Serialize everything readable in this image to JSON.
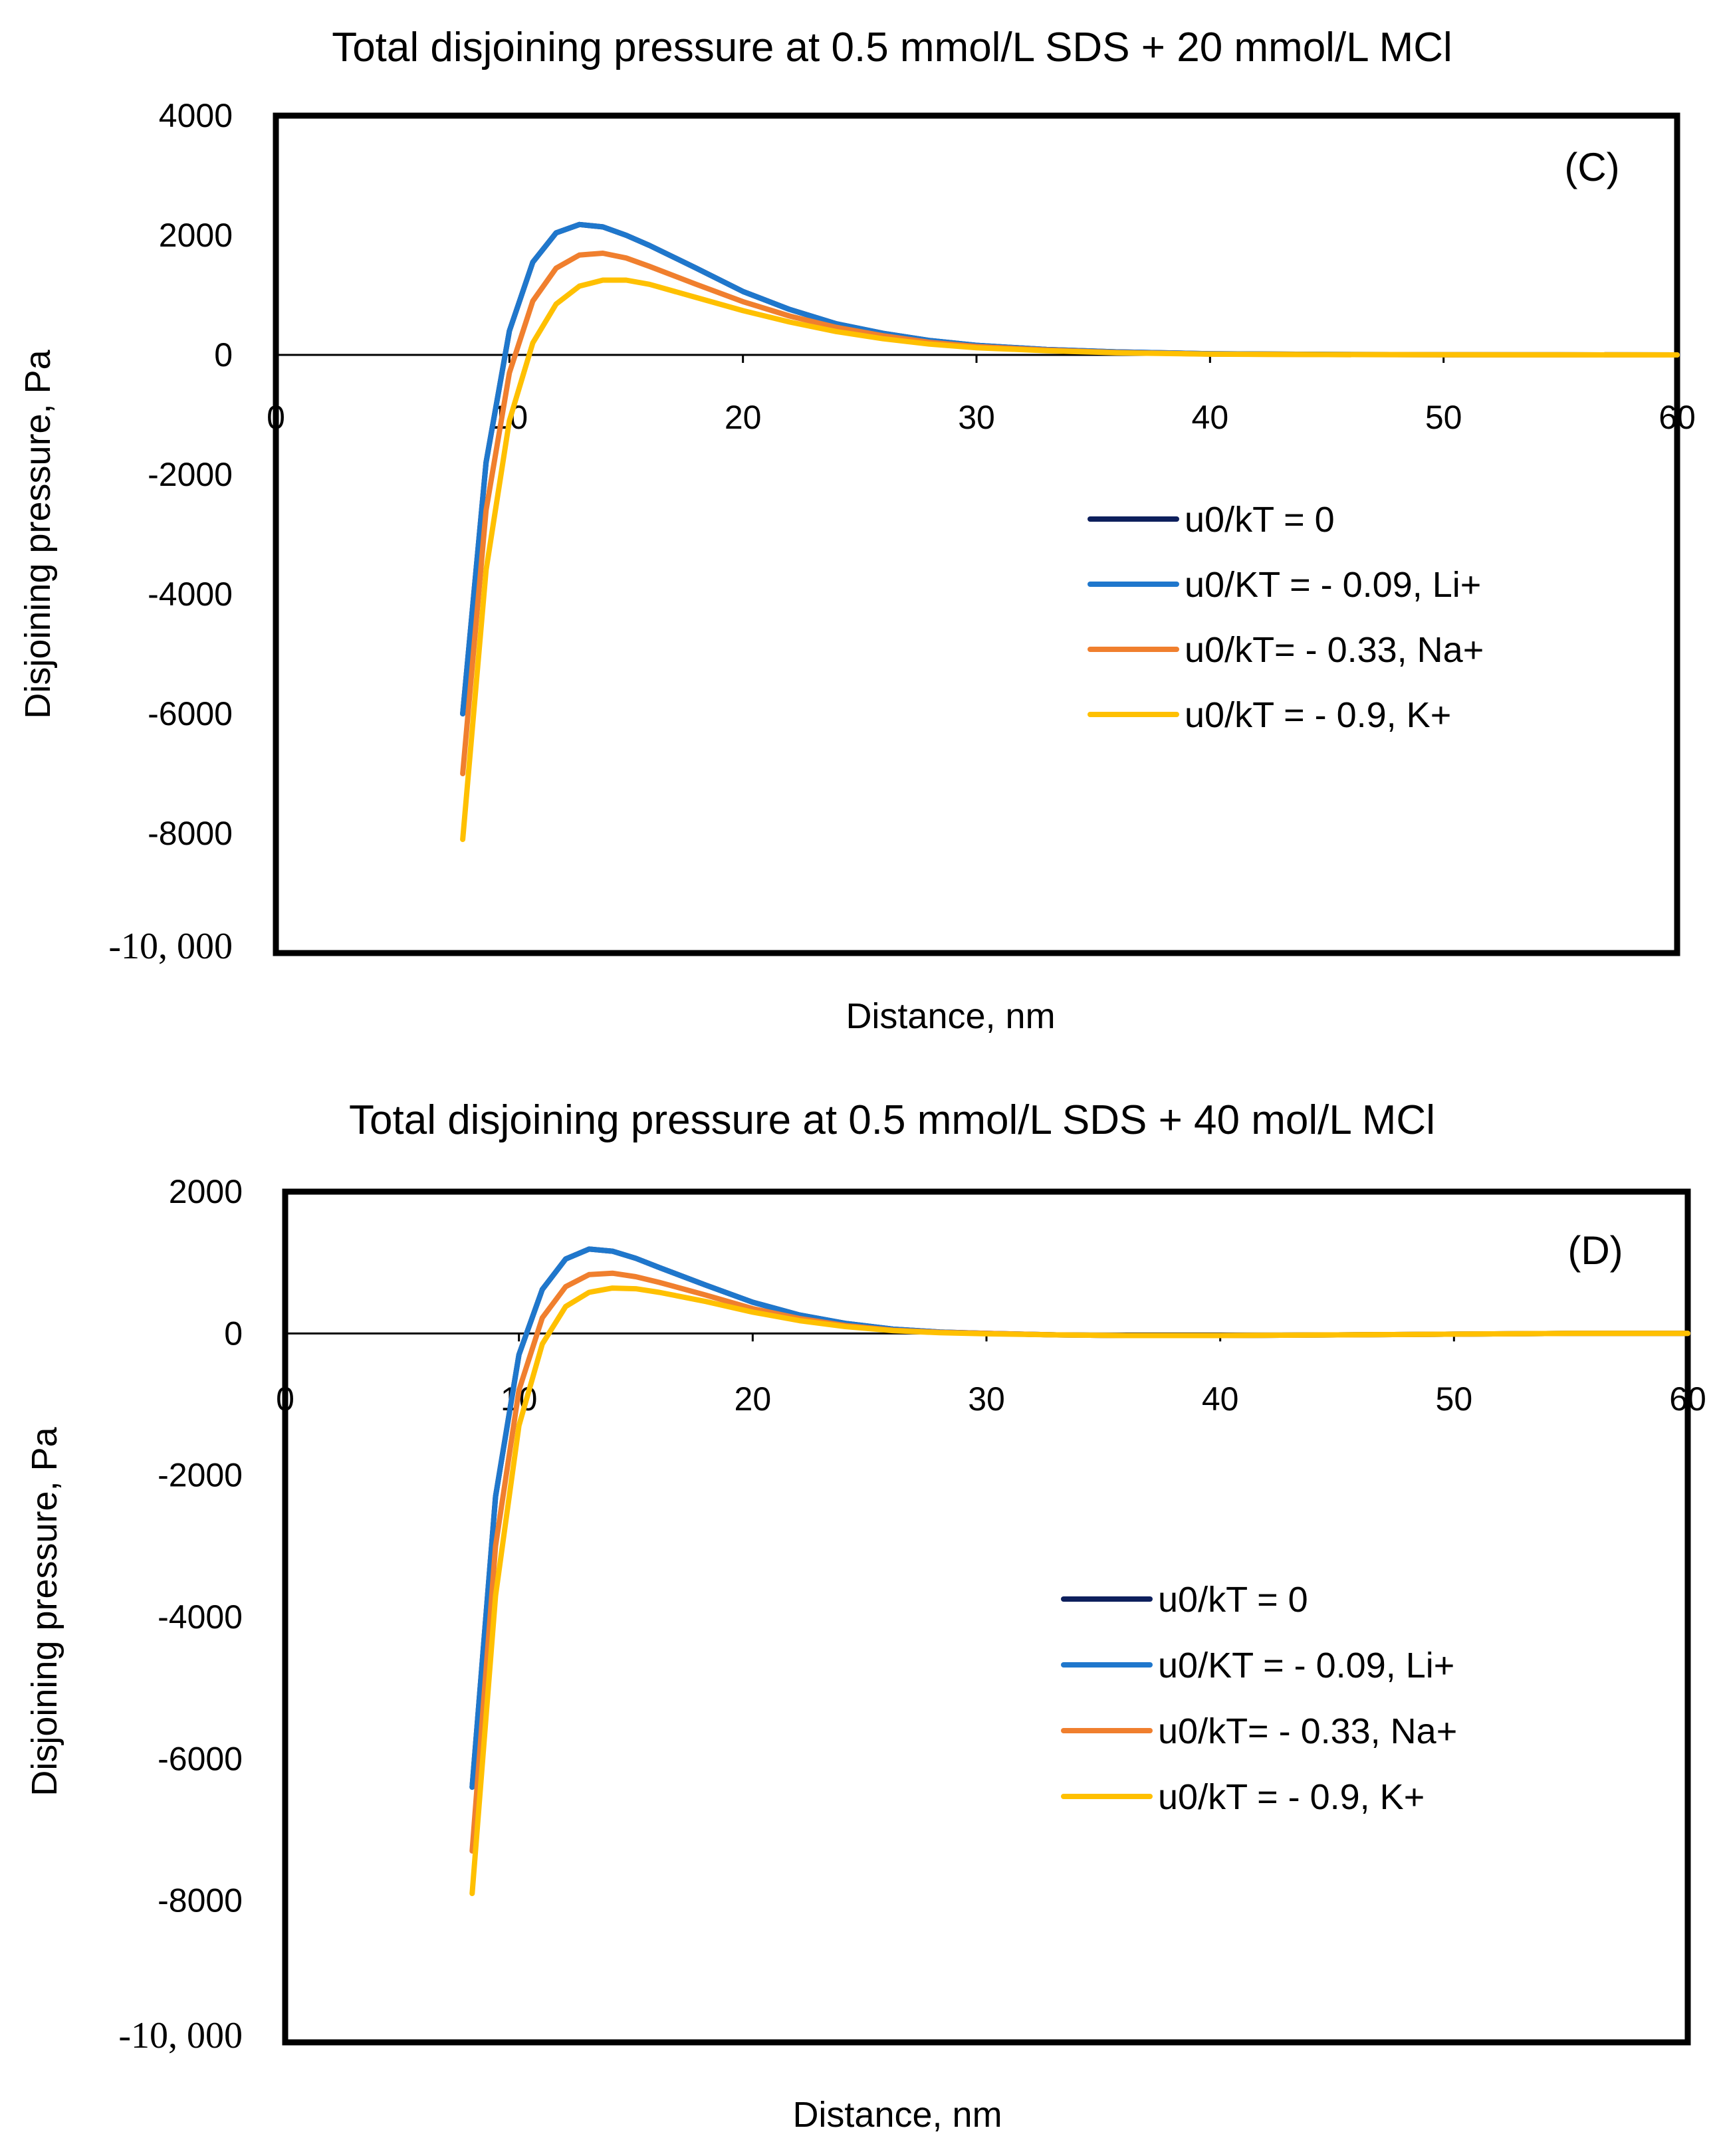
{
  "chart_data": [
    {
      "type": "line",
      "panel_label": "(C)",
      "title": "Total disjoining pressure at 0.5 mmol/L SDS + 20 mmol/L MCl",
      "xlabel": "Distance, nm",
      "ylabel": "Disjoining pressure, Pa",
      "xlim": [
        0,
        60
      ],
      "ylim": [
        -10000,
        4000
      ],
      "x_ticks": [
        0,
        10,
        20,
        30,
        40,
        50,
        60
      ],
      "x_tick_labels": [
        "0",
        "10",
        "20",
        "30",
        "40",
        "50",
        "60"
      ],
      "y_ticks": [
        4000,
        2000,
        0,
        -2000,
        -4000,
        -6000,
        -8000,
        -10000
      ],
      "y_tick_labels": [
        "4000",
        "2000",
        "0",
        "-2000",
        "-4000",
        "-6000",
        "-8000",
        "-10, 000"
      ],
      "legend_position": "center-right",
      "x": [
        8,
        9,
        10,
        11,
        12,
        13,
        14,
        15,
        16,
        18,
        20,
        22,
        24,
        26,
        28,
        30,
        33,
        36,
        40,
        45,
        50,
        55,
        60
      ],
      "series": [
        {
          "name": "u0/kT = 0",
          "color": "#0d1f5c",
          "values": [
            -6000,
            -1800,
            400,
            1550,
            2040,
            2180,
            2140,
            2000,
            1830,
            1450,
            1060,
            760,
            520,
            360,
            240,
            160,
            90,
            50,
            20,
            8,
            3,
            1,
            0
          ]
        },
        {
          "name": "u0/KT = - 0.09, Li+",
          "color": "#1f77cc",
          "values": [
            -6000,
            -1800,
            400,
            1550,
            2040,
            2180,
            2140,
            2000,
            1830,
            1450,
            1060,
            760,
            520,
            360,
            240,
            160,
            90,
            50,
            20,
            8,
            3,
            1,
            0
          ]
        },
        {
          "name": "u0/kT= - 0.33, Na+",
          "color": "#f07f2e",
          "values": [
            -7000,
            -2600,
            -300,
            900,
            1450,
            1670,
            1700,
            1620,
            1480,
            1180,
            890,
            650,
            460,
            320,
            210,
            140,
            80,
            40,
            15,
            6,
            2,
            1,
            0
          ]
        },
        {
          "name": "u0/kT = - 0.9, K+",
          "color": "#ffc000",
          "values": [
            -8100,
            -3600,
            -1100,
            200,
            850,
            1150,
            1250,
            1250,
            1180,
            960,
            740,
            550,
            390,
            270,
            180,
            120,
            70,
            35,
            12,
            5,
            2,
            1,
            0
          ]
        }
      ]
    },
    {
      "type": "line",
      "panel_label": "(D)",
      "title": "Total disjoining pressure at 0.5 mmol/L SDS + 40 mol/L MCl",
      "xlabel": "Distance, nm",
      "ylabel": "Disjoining pressure, Pa",
      "xlim": [
        0,
        60
      ],
      "ylim": [
        -10000,
        2000
      ],
      "x_ticks": [
        0,
        10,
        20,
        30,
        40,
        50,
        60
      ],
      "x_tick_labels": [
        "0",
        "10",
        "20",
        "30",
        "40",
        "50",
        "60"
      ],
      "y_ticks": [
        2000,
        0,
        -2000,
        -4000,
        -6000,
        -8000,
        -10000
      ],
      "y_tick_labels": [
        "2000",
        "0",
        "-2000",
        "-4000",
        "-6000",
        "-8000",
        "-10, 000"
      ],
      "legend_position": "bottom-center",
      "x": [
        8,
        9,
        10,
        11,
        12,
        13,
        14,
        15,
        16,
        18,
        20,
        22,
        24,
        26,
        28,
        30,
        33,
        36,
        40,
        45,
        50,
        55,
        60
      ],
      "series": [
        {
          "name": "u0/kT = 0",
          "color": "#0d1f5c",
          "values": [
            -6400,
            -2300,
            -300,
            620,
            1050,
            1190,
            1160,
            1060,
            930,
            680,
            440,
            260,
            140,
            60,
            20,
            0,
            -20,
            -30,
            -30,
            -20,
            -10,
            0,
            0
          ]
        },
        {
          "name": "u0/KT = - 0.09, Li+",
          "color": "#1f77cc",
          "values": [
            -6400,
            -2300,
            -300,
            620,
            1050,
            1190,
            1160,
            1060,
            930,
            680,
            440,
            260,
            140,
            60,
            20,
            0,
            -20,
            -30,
            -30,
            -20,
            -10,
            0,
            0
          ]
        },
        {
          "name": "u0/kT= - 0.33, Na+",
          "color": "#f07f2e",
          "values": [
            -7300,
            -3000,
            -800,
            220,
            660,
            830,
            850,
            800,
            720,
            540,
            350,
            210,
            110,
            45,
            15,
            0,
            -20,
            -30,
            -30,
            -20,
            -10,
            0,
            0
          ]
        },
        {
          "name": "u0/kT = - 0.9, K+",
          "color": "#ffc000",
          "values": [
            -7900,
            -3700,
            -1300,
            -150,
            380,
            580,
            640,
            630,
            580,
            450,
            300,
            180,
            95,
            40,
            10,
            -5,
            -20,
            -30,
            -30,
            -20,
            -10,
            0,
            0
          ]
        }
      ]
    }
  ]
}
